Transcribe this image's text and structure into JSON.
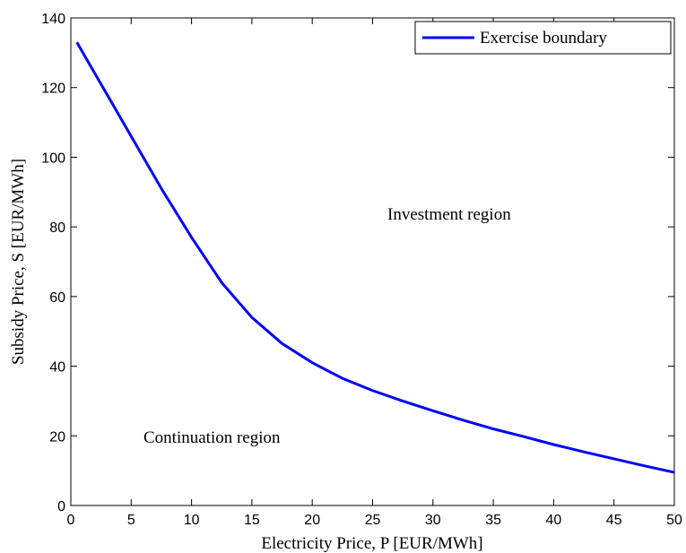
{
  "chart_data": {
    "type": "line",
    "x_label": "Electricity Price, P [EUR/MWh]",
    "y_label": "Subsidy Price, S [EUR/MWh]",
    "annotations": [
      "Investment region",
      "Continuation region"
    ],
    "legend": "upper right",
    "x": [
      0.5,
      2.5,
      5,
      7.5,
      10,
      12.5,
      15,
      17.5,
      20,
      22.5,
      25,
      27.5,
      30,
      32.5,
      35,
      37.5,
      40,
      42.5,
      45,
      47.5,
      50
    ],
    "series": [
      {
        "name": "Exercise boundary",
        "color": "#0000ff",
        "values": [
          133,
          121,
          106,
          91,
          77,
          64,
          54,
          46.5,
          41,
          36.5,
          33,
          30,
          27.2,
          24.5,
          22,
          19.8,
          17.5,
          15.4,
          13.4,
          11.4,
          9.5
        ]
      }
    ],
    "xlim": [
      0,
      50
    ],
    "xticks": [
      0,
      5,
      10,
      15,
      20,
      25,
      30,
      35,
      40,
      45,
      50
    ],
    "ylim": [
      0,
      140
    ],
    "yticks": [
      0,
      20,
      40,
      60,
      80,
      100,
      120,
      140
    ]
  }
}
